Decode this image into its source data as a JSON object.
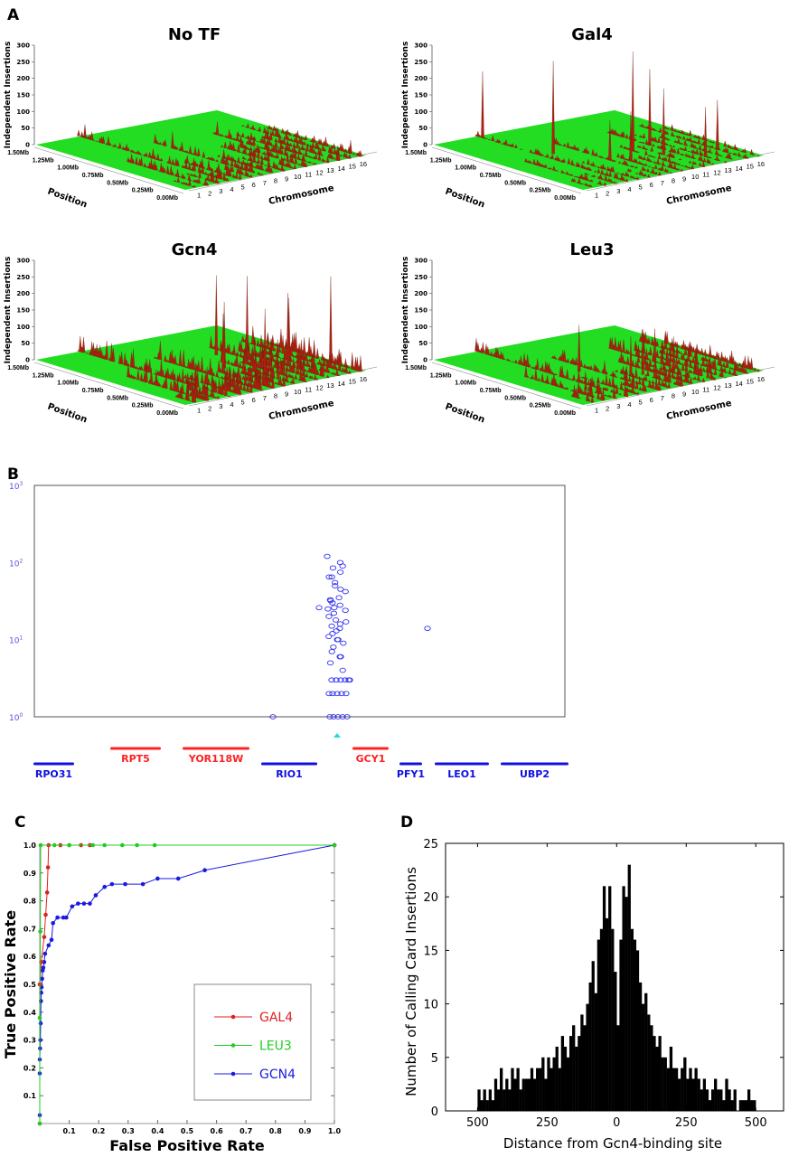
{
  "colors": {
    "plane": "#22dd22",
    "spike": "#b02010",
    "gal4": "#e02020",
    "leu3": "#22cc22",
    "gcn4": "#1a1ae0",
    "scatter": "#3333ee",
    "gene_plus": "#ff2020",
    "gene_minus": "#1010e0",
    "site": "#22dddd"
  },
  "chart_data": [
    {
      "type": "bar3d",
      "panel_label": "A",
      "z_label": "Independent Insertions",
      "z_ticks": [
        "0",
        "50",
        "100",
        "150",
        "200",
        "250",
        "300"
      ],
      "zlim": [
        0,
        300
      ],
      "position_label": "Position",
      "position_ticks": [
        "1.50Mb",
        "1.25Mb",
        "1.00Mb",
        "0.75Mb",
        "0.50Mb",
        "0.25Mb",
        "0.00Mb"
      ],
      "chromosome_label": "Chromosome",
      "chromosome_ticks": [
        "1",
        "2",
        "3",
        "4",
        "5",
        "6",
        "7",
        "8",
        "9",
        "10",
        "11",
        "12",
        "13",
        "14",
        "15",
        "16"
      ],
      "chromosome_lengths_mb": [
        0.23,
        0.81,
        0.32,
        1.53,
        0.58,
        0.27,
        1.09,
        0.56,
        0.44,
        0.75,
        0.67,
        1.08,
        0.92,
        0.78,
        1.09,
        0.95
      ],
      "plots": [
        {
          "title": "No TF",
          "noise_level": 30,
          "peaks": [
            [
              4,
              1.45,
              40
            ],
            [
              7,
              0.9,
              50
            ],
            [
              12,
              1.0,
              40
            ],
            [
              16,
              0.1,
              40
            ],
            [
              9,
              0.3,
              45
            ]
          ]
        },
        {
          "title": "Gal4",
          "noise_level": 18,
          "peaks": [
            [
              4,
              1.45,
              200
            ],
            [
              5,
              0.85,
              280
            ],
            [
              10,
              0.6,
              300
            ],
            [
              11,
              0.4,
              200
            ],
            [
              12,
              0.65,
              230
            ],
            [
              8,
              0.4,
              150
            ],
            [
              13,
              0.2,
              150
            ],
            [
              15,
              0.3,
              150
            ],
            [
              7,
              0.5,
              120
            ]
          ]
        },
        {
          "title": "Gcn4",
          "noise_level": 60,
          "peaks": [
            [
              9,
              0.6,
              200
            ],
            [
              11,
              0.9,
              240
            ],
            [
              12,
              0.7,
              250
            ],
            [
              13,
              0.4,
              220
            ],
            [
              16,
              0.3,
              260
            ],
            [
              8,
              0.5,
              180
            ],
            [
              10,
              0.3,
              200
            ],
            [
              14,
              0.5,
              190
            ]
          ]
        },
        {
          "title": "Leu3",
          "noise_level": 40,
          "peaks": [
            [
              6,
              0.7,
              140
            ],
            [
              8,
              0.4,
              120
            ],
            [
              10,
              0.5,
              120
            ],
            [
              12,
              0.6,
              100
            ],
            [
              11,
              0.3,
              110
            ]
          ]
        }
      ]
    },
    {
      "type": "scatter",
      "panel_label": "B",
      "y_scale": "log",
      "y_tick_base": "10",
      "y_tick_exponents": [
        "0",
        "1",
        "2",
        "3"
      ],
      "ylim": [
        1,
        1000
      ],
      "cluster_values": [
        120,
        100,
        90,
        85,
        75,
        65,
        65,
        55,
        50,
        45,
        42,
        35,
        33,
        32,
        30,
        28,
        26,
        25,
        24,
        22,
        20,
        18,
        17,
        16,
        15,
        14,
        13,
        12,
        11,
        10,
        10,
        9,
        8,
        7,
        6,
        6,
        5,
        4,
        3,
        3,
        3,
        3,
        3,
        3,
        2,
        2,
        2,
        2,
        2,
        1,
        1,
        1,
        1,
        1
      ],
      "outlier_values": [
        26,
        14,
        1
      ],
      "genes": [
        {
          "name": "RPO31",
          "strand": "minus"
        },
        {
          "name": "RPT5",
          "strand": "plus"
        },
        {
          "name": "YOR118W",
          "strand": "plus"
        },
        {
          "name": "RIO1",
          "strand": "minus"
        },
        {
          "name": "GCY1",
          "strand": "plus"
        },
        {
          "name": "PFY1",
          "strand": "minus"
        },
        {
          "name": "LEO1",
          "strand": "minus"
        },
        {
          "name": "UBP2",
          "strand": "minus"
        }
      ]
    },
    {
      "type": "line",
      "panel_label": "C",
      "xlabel": "False Positive Rate",
      "ylabel": "True Positive Rate",
      "xlim": [
        0,
        1
      ],
      "ylim": [
        0,
        1
      ],
      "x_ticks": [
        "0.1",
        "0.2",
        "0.3",
        "0.4",
        "0.5",
        "0.6",
        "0.7",
        "0.8",
        "0.9",
        "1.0"
      ],
      "y_ticks": [
        "0.1",
        "0.2",
        "0.3",
        "0.4",
        "0.5",
        "0.6",
        "0.7",
        "0.8",
        "0.9",
        "1.0"
      ],
      "legend_position": "bottom-right",
      "series": [
        {
          "name": "GAL4",
          "color_key": "gal4",
          "x": [
            0,
            0,
            0.005,
            0.015,
            0.02,
            0.025,
            0.028,
            0.03,
            0.07,
            0.1,
            0.14,
            0.17,
            1
          ],
          "y": [
            0,
            0.5,
            0.58,
            0.67,
            0.75,
            0.83,
            0.92,
            1,
            1,
            1,
            1,
            1,
            1
          ]
        },
        {
          "name": "LEU3",
          "color_key": "leu3",
          "x": [
            0,
            0,
            0.002,
            0.003,
            0.05,
            0.1,
            0.18,
            0.22,
            0.28,
            0.33,
            0.39,
            1
          ],
          "y": [
            0,
            0.38,
            0.69,
            1,
            1,
            1,
            1,
            1,
            1,
            1,
            1,
            1
          ]
        },
        {
          "name": "GCN4",
          "color_key": "gcn4",
          "x": [
            0,
            0,
            0,
            0.001,
            0.002,
            0.003,
            0.004,
            0.005,
            0.006,
            0.008,
            0.01,
            0.012,
            0.015,
            0.018,
            0.03,
            0.04,
            0.045,
            0.06,
            0.08,
            0.09,
            0.11,
            0.13,
            0.15,
            0.17,
            0.19,
            0.22,
            0.245,
            0.29,
            0.35,
            0.4,
            0.47,
            0.56,
            1
          ],
          "y": [
            0.03,
            0.18,
            0.23,
            0.27,
            0.3,
            0.36,
            0.44,
            0.47,
            0.49,
            0.52,
            0.55,
            0.56,
            0.58,
            0.61,
            0.64,
            0.66,
            0.72,
            0.74,
            0.74,
            0.74,
            0.78,
            0.79,
            0.79,
            0.79,
            0.82,
            0.85,
            0.86,
            0.86,
            0.86,
            0.88,
            0.88,
            0.91,
            1
          ]
        }
      ]
    },
    {
      "type": "bar",
      "panel_label": "D",
      "xlabel": "Distance from Gcn4-binding site",
      "ylabel": "Number of Calling Card Insertions",
      "xlim": [
        -615,
        600
      ],
      "ylim": [
        0,
        25
      ],
      "x_tick_values": [
        -500,
        -250,
        0,
        250,
        500
      ],
      "x_ticks": [
        "500",
        "250",
        "0",
        "250",
        "500"
      ],
      "y_ticks": [
        "0",
        "5",
        "10",
        "15",
        "20",
        "25"
      ],
      "bin_start": -500,
      "bin_width": 10,
      "values": [
        2,
        1,
        2,
        1,
        2,
        1,
        3,
        2,
        4,
        2,
        3,
        2,
        4,
        3,
        4,
        2,
        3,
        3,
        3,
        4,
        3,
        4,
        4,
        5,
        3,
        5,
        4,
        5,
        6,
        4,
        7,
        6,
        5,
        7,
        8,
        6,
        7,
        9,
        8,
        10,
        12,
        14,
        11,
        16,
        17,
        21,
        18,
        21,
        17,
        13,
        8,
        16,
        21,
        20,
        23,
        17,
        16,
        15,
        12,
        10,
        11,
        9,
        8,
        7,
        6,
        7,
        5,
        5,
        4,
        6,
        4,
        4,
        3,
        4,
        5,
        3,
        4,
        3,
        4,
        3,
        2,
        3,
        2,
        1,
        2,
        3,
        2,
        2,
        1,
        3,
        2,
        1,
        2,
        0,
        1,
        1,
        1,
        2,
        1,
        1
      ]
    }
  ]
}
